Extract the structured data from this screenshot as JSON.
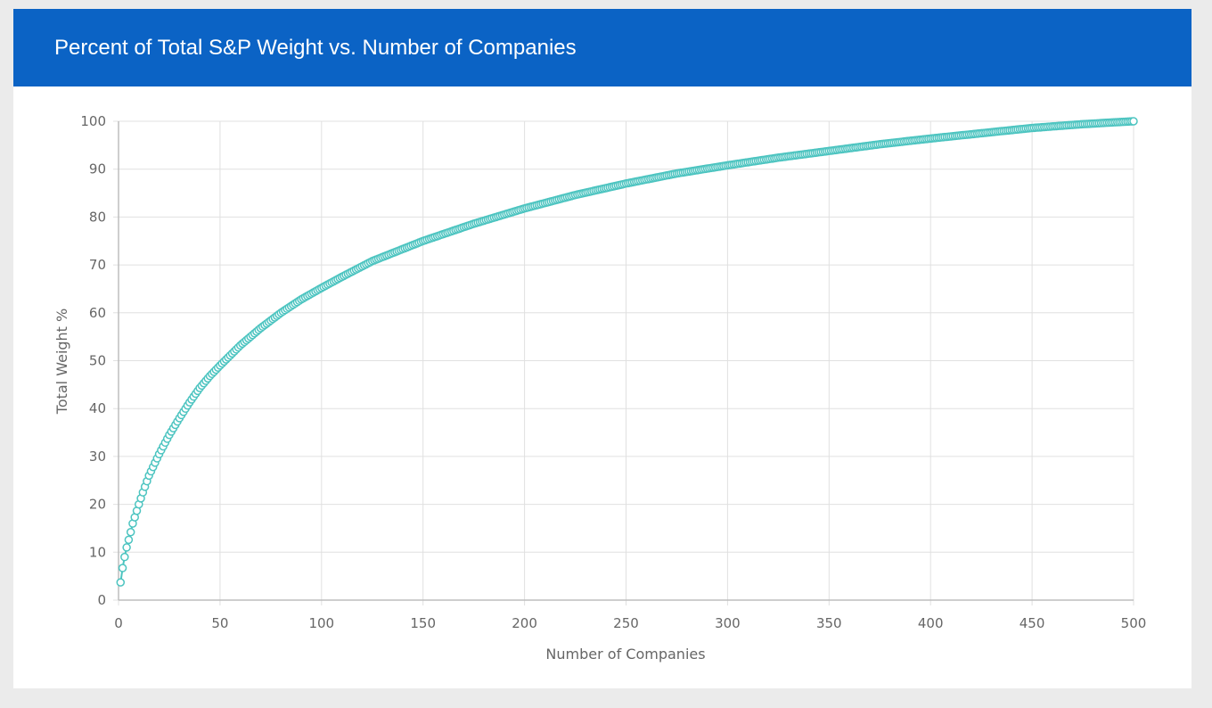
{
  "header": {
    "title": "Percent of Total S&P Weight vs. Number of Companies"
  },
  "colors": {
    "header": "#0b63c5",
    "marker": "#4cc4c0",
    "grid": "#e0e0e0",
    "axis": "#bdbdbd"
  },
  "chart_data": {
    "type": "scatter",
    "title": "Percent of Total S&P Weight vs. Number of Companies",
    "xlabel": "Number of Companies",
    "ylabel": "Total Weight %",
    "xlim": [
      0,
      500
    ],
    "ylim": [
      0,
      100
    ],
    "xticks": [
      "0",
      "50",
      "100",
      "150",
      "200",
      "250",
      "300",
      "350",
      "400",
      "450",
      "500"
    ],
    "yticks": [
      "0",
      "10",
      "20",
      "30",
      "40",
      "50",
      "60",
      "70",
      "80",
      "90",
      "100"
    ],
    "grid": true,
    "point_count": 500,
    "series": [
      {
        "name": "Total Weight %",
        "x": [
          1,
          2,
          3,
          4,
          5,
          6,
          7,
          8,
          10,
          12,
          15,
          20,
          25,
          30,
          35,
          40,
          45,
          50,
          60,
          70,
          80,
          90,
          100,
          110,
          125,
          150,
          175,
          200,
          225,
          250,
          275,
          300,
          325,
          350,
          375,
          400,
          425,
          450,
          475,
          500
        ],
        "y": [
          3.7,
          6.7,
          9,
          11,
          12.6,
          14.2,
          16,
          17.3,
          20,
          22.5,
          26,
          30.5,
          34.5,
          38,
          41.3,
          44.3,
          46.8,
          49,
          53.2,
          56.8,
          60,
          62.8,
          65.2,
          67.5,
          70.8,
          75,
          78.6,
          81.8,
          84.6,
          87,
          89.1,
          90.8,
          92.4,
          93.8,
          95.2,
          96.4,
          97.5,
          98.6,
          99.4,
          100
        ]
      }
    ]
  }
}
